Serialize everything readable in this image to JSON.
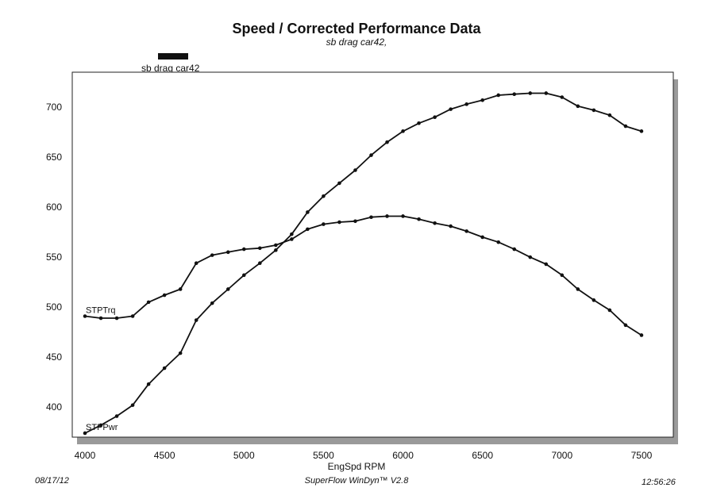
{
  "chart_data": {
    "type": "line",
    "title": "Speed / Corrected Performance Data",
    "subtitle": "sb drag car42,",
    "legend": {
      "label": "sb drag car42",
      "color": "#111111",
      "placement": "top-left"
    },
    "xlabel": "EngSpd  RPM",
    "ylabel": "",
    "xlim": [
      3920,
      7700
    ],
    "ylim": [
      370,
      735
    ],
    "xticks": [
      4000,
      4500,
      5000,
      5500,
      6000,
      6500,
      7000,
      7500
    ],
    "yticks": [
      400,
      450,
      500,
      550,
      600,
      650,
      700
    ],
    "grid": false,
    "x": [
      4000,
      4100,
      4200,
      4300,
      4400,
      4500,
      4600,
      4700,
      4800,
      4900,
      5000,
      5100,
      5200,
      5300,
      5400,
      5500,
      5600,
      5700,
      5800,
      5900,
      6000,
      6100,
      6200,
      6300,
      6400,
      6500,
      6600,
      6700,
      6800,
      6900,
      7000,
      7100,
      7200,
      7300,
      7400,
      7500
    ],
    "series": [
      {
        "name": "STPTrq",
        "values": [
          491,
          489,
          489,
          491,
          505,
          512,
          518,
          544,
          552,
          555,
          558,
          559,
          562,
          568,
          578,
          583,
          585,
          586,
          590,
          591,
          591,
          588,
          584,
          581,
          576,
          570,
          565,
          558,
          550,
          543,
          532,
          518,
          507,
          497,
          482,
          472
        ]
      },
      {
        "name": "STPPwr",
        "values": [
          374,
          382,
          391,
          402,
          423,
          439,
          454,
          487,
          504,
          518,
          532,
          544,
          557,
          573,
          595,
          611,
          624,
          637,
          652,
          665,
          676,
          684,
          690,
          698,
          703,
          707,
          712,
          713,
          714,
          714,
          710,
          701,
          697,
          692,
          681,
          676
        ]
      }
    ]
  },
  "footer": {
    "date": "08/17/12",
    "software": "SuperFlow WinDyn™ V2.8",
    "time": "12:56:26"
  }
}
